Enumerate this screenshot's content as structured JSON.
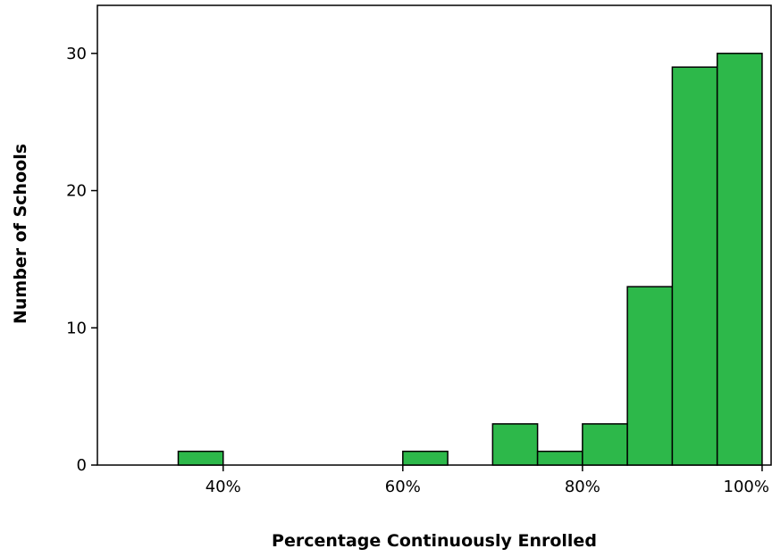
{
  "chart_data": {
    "type": "bar",
    "subtype": "histogram",
    "xlabel": "Percentage Continuously Enrolled",
    "ylabel": "Number of Schools",
    "bin_width": 5,
    "bins": [
      {
        "start": 35,
        "end": 40,
        "count": 1
      },
      {
        "start": 60,
        "end": 65,
        "count": 1
      },
      {
        "start": 70,
        "end": 75,
        "count": 3
      },
      {
        "start": 75,
        "end": 80,
        "count": 1
      },
      {
        "start": 80,
        "end": 85,
        "count": 3
      },
      {
        "start": 85,
        "end": 90,
        "count": 13
      },
      {
        "start": 90,
        "end": 95,
        "count": 29
      },
      {
        "start": 95,
        "end": 100,
        "count": 30
      }
    ],
    "xlim": [
      26,
      101
    ],
    "ylim": [
      0,
      33.5
    ],
    "x_ticks": [
      40,
      60,
      80,
      100
    ],
    "x_tick_labels": [
      "40%",
      "60%",
      "80%",
      "100%"
    ],
    "y_ticks": [
      0,
      10,
      20,
      30
    ],
    "y_tick_labels": [
      "0",
      "10",
      "20",
      "30"
    ],
    "grid": false,
    "bar_color": "#2db84a",
    "bar_edge_color": "#000000"
  }
}
